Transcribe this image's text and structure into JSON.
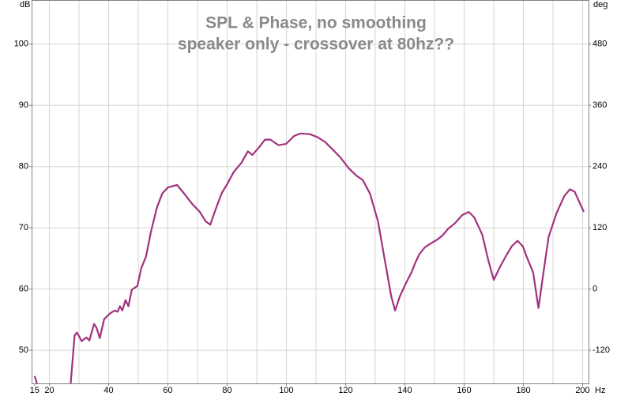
{
  "chart_data": {
    "type": "line",
    "title": "SPL & Phase, no smoothing",
    "subtitle": "speaker only - crossover at 80hz??",
    "ylabel": "dB",
    "y2label": "deg",
    "xlabel": "Hz",
    "xlim": [
      14,
      202
    ],
    "xticks": [
      15,
      20,
      40,
      60,
      80,
      100,
      120,
      140,
      160,
      180,
      200
    ],
    "xgrid": [
      20,
      30,
      40,
      50,
      60,
      70,
      80,
      90,
      100,
      110,
      120,
      130,
      140,
      150,
      160,
      170,
      180,
      190,
      200
    ],
    "ylim": [
      44.6,
      107.2
    ],
    "yticks": [
      50,
      60,
      70,
      80,
      90,
      100
    ],
    "y2lim": [
      -185,
      566
    ],
    "y2ticks": [
      -120,
      0,
      120,
      240,
      360,
      480
    ],
    "grid": true,
    "x": [
      15.0,
      15.8,
      null,
      27.2,
      28.5,
      29.3,
      30.9,
      32.5,
      33.5,
      35.1,
      35.9,
      37.0,
      38.5,
      40.4,
      42.0,
      43.0,
      43.8,
      44.6,
      45.7,
      46.7,
      47.8,
      49.7,
      51.0,
      52.6,
      54.2,
      56.3,
      58.1,
      60.0,
      63.1,
      65.5,
      68.2,
      70.8,
      72.7,
      74.3,
      76.1,
      78.2,
      80.1,
      82.2,
      84.8,
      87.0,
      88.5,
      90.7,
      92.8,
      94.6,
      97.3,
      99.9,
      102.6,
      104.7,
      107.9,
      110.5,
      113.1,
      115.8,
      118.4,
      121.1,
      123.7,
      125.8,
      128.2,
      130.9,
      133.5,
      135.4,
      136.7,
      138.3,
      140.4,
      142.2,
      143.6,
      144.9,
      146.7,
      148.9,
      151.0,
      152.8,
      154.7,
      156.8,
      159.4,
      161.6,
      163.4,
      166.1,
      168.2,
      170.0,
      171.9,
      174.0,
      176.1,
      178.0,
      179.8,
      181.1,
      183.3,
      185.1,
      186.4,
      188.5,
      191.2,
      193.8,
      195.7,
      197.3,
      200.4
    ],
    "series": [
      {
        "name": "SPL",
        "color": "#a2317f",
        "values": [
          45.8,
          44.6,
          null,
          44.6,
          52.4,
          52.9,
          51.5,
          52.1,
          51.6,
          54.3,
          53.7,
          52.0,
          55.1,
          56.0,
          56.5,
          56.3,
          57.2,
          56.5,
          58.2,
          57.2,
          59.9,
          60.5,
          63.4,
          65.3,
          69.2,
          73.3,
          75.6,
          76.6,
          77.0,
          75.6,
          73.9,
          72.6,
          71.1,
          70.5,
          73.0,
          75.7,
          77.2,
          79.1,
          80.6,
          82.5,
          81.9,
          83.1,
          84.4,
          84.4,
          83.5,
          83.7,
          85.0,
          85.4,
          85.3,
          84.8,
          84.0,
          82.7,
          81.4,
          79.7,
          78.5,
          77.8,
          75.6,
          71.1,
          64.0,
          58.8,
          56.5,
          58.8,
          61.0,
          62.7,
          64.4,
          65.7,
          66.8,
          67.5,
          68.1,
          68.8,
          69.9,
          70.7,
          72.1,
          72.6,
          71.7,
          68.9,
          64.6,
          61.5,
          63.4,
          65.3,
          67.0,
          67.9,
          67.0,
          65.3,
          62.7,
          56.9,
          61.4,
          68.5,
          72.4,
          75.2,
          76.3,
          75.9,
          72.6
        ]
      }
    ]
  }
}
